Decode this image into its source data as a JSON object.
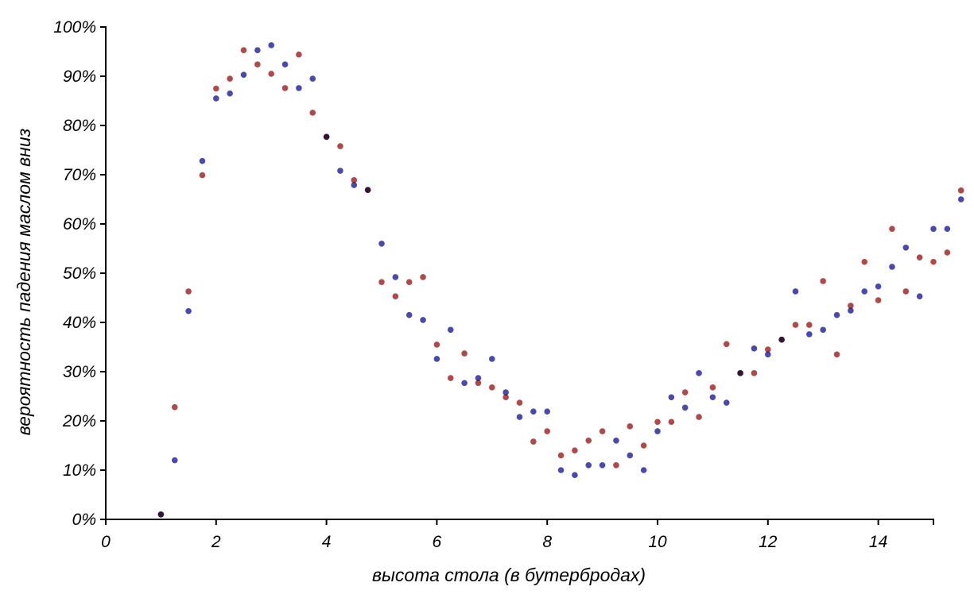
{
  "chart_data": {
    "type": "scatter",
    "xlabel": "высота стола (в бутербродах)",
    "ylabel": "вероятность падения маслом вниз",
    "xlim": [
      0,
      15
    ],
    "ylim": [
      0,
      100
    ],
    "xticks": [
      0,
      2,
      4,
      6,
      8,
      10,
      12,
      14
    ],
    "yticks": [
      0,
      10,
      20,
      30,
      40,
      50,
      60,
      70,
      80,
      90,
      100
    ],
    "ytick_format": "%",
    "x": [
      1,
      1.25,
      1.5,
      1.75,
      2,
      2.25,
      2.5,
      2.75,
      3,
      3.25,
      3.5,
      3.75,
      4,
      4.25,
      4.5,
      4.75,
      5,
      5.25,
      5.5,
      5.75,
      6,
      6.25,
      6.5,
      6.75,
      7,
      7.25,
      7.5,
      7.75,
      8,
      8.25,
      8.5,
      8.75,
      9,
      9.25,
      9.5,
      9.75,
      10,
      10.25,
      10.5,
      10.75,
      11,
      11.25,
      11.5,
      11.75,
      12,
      12.25,
      12.5,
      12.75,
      13,
      13.25,
      13.5,
      13.75,
      14,
      14.25,
      14.5,
      14.75,
      15,
      15.25,
      15.5
    ],
    "series": [
      {
        "name": "blue",
        "color": "#4a4aae",
        "values": [
          1,
          12,
          42.3,
          72.8,
          85.5,
          86.5,
          90.3,
          95.3,
          96.3,
          92.4,
          87.6,
          89.5,
          77.7,
          70.8,
          67.9,
          66.9,
          56,
          49.2,
          41.5,
          40.5,
          32.6,
          38.5,
          27.7,
          28.7,
          32.6,
          25.8,
          20.8,
          21.9,
          21.9,
          10,
          9,
          11,
          11,
          16,
          13,
          10,
          17.9,
          24.8,
          22.7,
          29.7,
          24.8,
          23.7,
          29.7,
          34.7,
          33.5,
          36.5,
          46.3,
          37.6,
          38.5,
          41.5,
          42.4,
          46.3,
          47.3,
          51.3,
          55.2,
          45.3,
          59,
          59,
          65
        ]
      },
      {
        "name": "red",
        "color": "#b04a4a",
        "values": [
          1,
          22.8,
          46.3,
          69.9,
          87.5,
          89.5,
          95.3,
          92.4,
          90.5,
          87.6,
          94.4,
          82.6,
          77.7,
          75.8,
          68.9,
          66.9,
          48.2,
          45.3,
          48.2,
          49.2,
          35.5,
          28.7,
          33.7,
          27.7,
          26.8,
          24.8,
          23.7,
          15.8,
          17.9,
          13,
          14,
          16,
          17.9,
          11,
          18.9,
          15,
          19.8,
          19.8,
          25.8,
          20.8,
          26.8,
          35.6,
          29.7,
          29.7,
          34.5,
          36.5,
          39.5,
          39.5,
          48.4,
          33.5,
          43.4,
          52.3,
          44.5,
          59,
          46.3,
          53.2,
          52.3,
          54.2,
          66.8
        ]
      }
    ]
  }
}
